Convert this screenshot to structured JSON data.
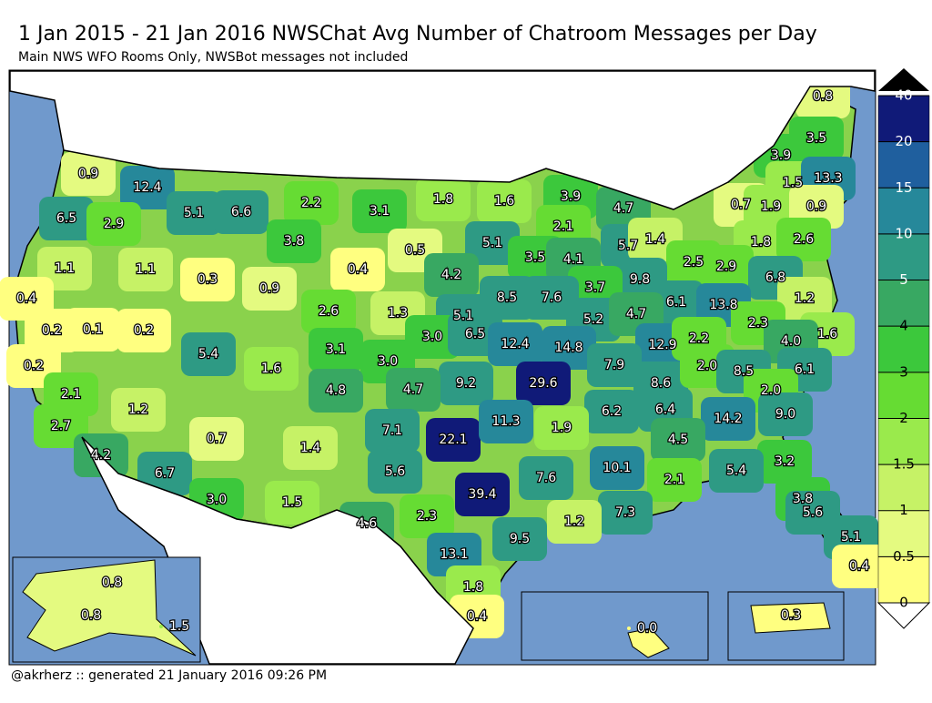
{
  "title": "1 Jan 2015 - 21 Jan 2016 NWSChat Avg Number of Chatroom Messages per Day",
  "subtitle": "Main NWS WFO Rooms Only, NWSBot messages not included",
  "footer": "@akrherz :: generated 21 January 2016 09:26 PM",
  "legend": {
    "ticks": [
      0,
      0.5,
      1,
      1.5,
      2,
      3,
      4,
      5,
      10,
      15,
      20,
      40
    ],
    "colors": [
      "#ffff80",
      "#e4fa80",
      "#c6f266",
      "#9aea4c",
      "#66dc33",
      "#3cc83c",
      "#38a862",
      "#2e9a84",
      "#26889a",
      "#1f5f9e",
      "#101a78"
    ]
  },
  "regions": {
    "values": [
      0.8,
      3.5,
      3.9,
      1.5,
      13.3,
      0.7,
      1.9,
      0.9,
      0.9,
      12.4,
      6.5,
      2.9,
      5.1,
      6.6,
      2.2,
      3.1,
      1.8,
      1.6,
      3.9,
      4.7,
      2.1,
      5.1,
      5.7,
      1.4,
      1.8,
      2.6,
      3.8,
      0.5,
      0.4,
      1.1,
      1.1,
      0.3,
      3.5,
      4.1,
      4.2,
      2.5,
      2.9,
      0.9,
      9.8,
      6.8,
      3.7,
      8.5,
      7.6,
      6.1,
      13.8,
      1.2,
      0.4,
      0.2,
      0.1,
      0.2,
      2.6,
      1.3,
      5.1,
      5.2,
      4.7,
      2.3,
      1.6,
      5.4,
      3.1,
      3.0,
      6.5,
      12.4,
      14.8,
      12.9,
      2.2,
      4.0,
      0.2,
      1.6,
      3.0,
      9.2,
      7.9,
      8.6,
      2.0,
      8.5,
      6.1,
      4.8,
      4.7,
      29.6,
      2.0,
      2.1,
      1.2,
      6.2,
      6.4,
      14.2,
      9.0,
      2.7,
      0.7,
      7.1,
      22.1,
      11.3,
      1.9,
      4.5,
      1.4,
      4.2,
      6.7,
      5.6,
      10.1,
      3.2,
      5.4,
      7.6,
      2.1,
      3.0,
      1.5,
      39.4,
      3.8,
      2.3,
      7.3,
      5.6,
      4.6,
      1.2,
      5.1,
      9.5,
      0.4,
      13.1,
      1.8,
      0.4,
      0.8,
      0.8,
      1.5,
      0.0,
      0.3
    ],
    "value_labels": [
      "0.8",
      "3.5",
      "3.9",
      "1.5",
      "13.3",
      "0.7",
      "1.9",
      "0.9",
      "0.9",
      "12.4",
      "6.5",
      "2.9",
      "5.1",
      "6.6",
      "2.2",
      "3.1",
      "1.8",
      "1.6",
      "3.9",
      "4.7",
      "2.1",
      "5.1",
      "5.7",
      "1.4",
      "1.8",
      "2.6",
      "3.8",
      "0.5",
      "0.4",
      "1.1",
      "1.1",
      "0.3",
      "3.5",
      "4.1",
      "4.2",
      "2.5",
      "2.9",
      "0.9",
      "9.8",
      "6.8",
      "3.7",
      "8.5",
      "7.6",
      "6.1",
      "13.8",
      "1.2",
      "0.4",
      "0.2",
      "0.1",
      "0.2",
      "2.6",
      "1.3",
      "5.1",
      "5.2",
      "4.7",
      "2.3",
      "1.6",
      "5.4",
      "3.1",
      "3.0",
      "6.5",
      "12.4",
      "14.8",
      "12.9",
      "2.2",
      "4.0",
      "0.2",
      "1.6",
      "3.0",
      "9.2",
      "7.9",
      "8.6",
      "2.0",
      "8.5",
      "6.1",
      "4.8",
      "4.7",
      "29.6",
      "2.0",
      "2.1",
      "1.2",
      "6.2",
      "6.4",
      "14.2",
      "9.0",
      "2.7",
      "0.7",
      "7.1",
      "22.1",
      "11.3",
      "1.9",
      "4.5",
      "1.4",
      "4.2",
      "6.7",
      "5.6",
      "10.1",
      "3.2",
      "5.4",
      "7.6",
      "2.1",
      "3.0",
      "1.5",
      "39.4",
      "3.8",
      "2.3",
      "7.3",
      "5.6",
      "4.6",
      "1.2",
      "5.1",
      "9.5",
      "0.4",
      "13.1",
      "1.8",
      "0.4",
      "0.8",
      "0.8",
      "1.5",
      "0.0",
      "0.3"
    ]
  }
}
